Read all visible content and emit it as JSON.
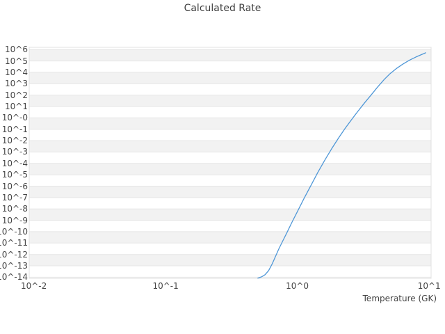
{
  "colors": {
    "background": "#ffffff",
    "band": "#f2f2f2",
    "gridline": "#e5e5e5",
    "plot_border": "#e0e0e0",
    "text": "#444444",
    "line": "#4f97d7"
  },
  "chart_data": {
    "type": "line",
    "title": "Calculated Rate",
    "xlabel": "Temperature (GK)",
    "ylabel": "",
    "x_scale": "log",
    "y_scale": "log",
    "legend": "none",
    "grid": "horizontal-decade-lines-with-alternating-bands",
    "xlim_log10": [
      -2.035,
      1.015
    ],
    "ylim_log10": [
      -14.1,
      6.2
    ],
    "x_tick_labels": [
      "10^-2",
      "10^-1",
      "10^0",
      "10^1"
    ],
    "x_tick_exponents": [
      -2,
      -1,
      0,
      1
    ],
    "y_tick_labels": [
      "10^6",
      "10^5",
      "10^4",
      "10^3",
      "10^2",
      "10^1",
      "10^-0",
      "10^-1",
      "10^-2",
      "10^-3",
      "10^-4",
      "10^-5",
      "10^-6",
      "10^-7",
      "10^-8",
      "10^-9",
      "10^-10",
      "10^-11",
      "10^-12",
      "10^-13",
      "10^-14"
    ],
    "y_tick_exponents": [
      6,
      5,
      4,
      3,
      2,
      1,
      0,
      -1,
      -2,
      -3,
      -4,
      -5,
      -6,
      -7,
      -8,
      -9,
      -10,
      -11,
      -12,
      -13,
      -14
    ],
    "series": [
      {
        "name": "Calculated Rate",
        "color": "#4f97d7",
        "units": "x: Temperature in GK (log10), y: reaction rate (log10)",
        "points_log10": [
          [
            -0.3,
            -14.08
          ],
          [
            -0.272,
            -13.97
          ],
          [
            -0.245,
            -13.78
          ],
          [
            -0.218,
            -13.42
          ],
          [
            -0.192,
            -12.85
          ],
          [
            -0.165,
            -12.15
          ],
          [
            -0.14,
            -11.5
          ],
          [
            -0.11,
            -10.8
          ],
          [
            -0.078,
            -10.05
          ],
          [
            -0.04,
            -9.15
          ],
          [
            0.0,
            -8.25
          ],
          [
            0.052,
            -7.05
          ],
          [
            0.105,
            -5.9
          ],
          [
            0.156,
            -4.78
          ],
          [
            0.208,
            -3.72
          ],
          [
            0.26,
            -2.72
          ],
          [
            0.312,
            -1.78
          ],
          [
            0.364,
            -0.9
          ],
          [
            0.416,
            -0.08
          ],
          [
            0.46,
            0.58
          ],
          [
            0.51,
            1.32
          ],
          [
            0.56,
            2.02
          ],
          [
            0.61,
            2.72
          ],
          [
            0.66,
            3.38
          ],
          [
            0.705,
            3.9
          ],
          [
            0.75,
            4.32
          ],
          [
            0.8,
            4.72
          ],
          [
            0.85,
            5.06
          ],
          [
            0.9,
            5.35
          ],
          [
            0.94,
            5.55
          ],
          [
            0.974,
            5.72
          ]
        ]
      }
    ]
  }
}
